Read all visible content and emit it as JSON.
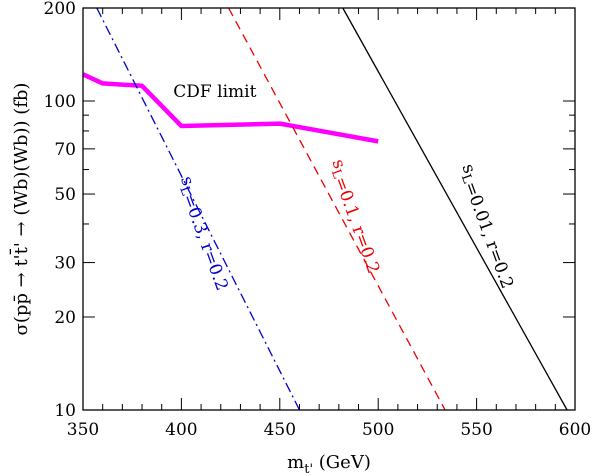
{
  "chart_data": {
    "type": "line",
    "xlabel": "m_t' (GeV)",
    "ylabel": "σ(pp̄ → t't̄' → (Wb)(Wb)) (fb)",
    "xlim": [
      350,
      600
    ],
    "ylim": [
      10,
      200
    ],
    "y_scale": "log",
    "x_ticks": [
      350,
      400,
      450,
      500,
      550,
      600
    ],
    "y_ticks": [
      10,
      20,
      30,
      50,
      70,
      100,
      200
    ],
    "grid": false,
    "series": [
      {
        "name": "CDF limit",
        "color": "#ff00ff",
        "style": "solid-thick",
        "x": [
          350,
          360,
          380,
          400,
          450,
          500
        ],
        "y": [
          122,
          114,
          112,
          83,
          84.5,
          74
        ]
      },
      {
        "name": "s_L=0.3, r=0.2",
        "color": "#0000cc",
        "style": "dashdot",
        "x": [
          357,
          460
        ],
        "y": [
          200,
          10
        ]
      },
      {
        "name": "s_L=0.1, r=0.2",
        "color": "#ee0000",
        "style": "dashed",
        "x": [
          424,
          534
        ],
        "y": [
          200,
          10
        ]
      },
      {
        "name": "s_L=0.01, r=0.2",
        "color": "#000000",
        "style": "solid",
        "x": [
          482,
          596
        ],
        "y": [
          200,
          10
        ]
      }
    ],
    "annotations": [
      {
        "text": "CDF limit",
        "x": 417,
        "y": 103,
        "color": "#000000",
        "rotate": 0
      },
      {
        "text": "s_L=0.3, r=0.2",
        "x": 410,
        "y": 37,
        "color": "#0000cc",
        "rotate": 70
      },
      {
        "text": "s_L=0.1, r=0.2",
        "x": 487,
        "y": 42,
        "color": "#ee0000",
        "rotate": 70
      },
      {
        "text": "s_L=0.01, r=0.2",
        "x": 554,
        "y": 39,
        "color": "#000000",
        "rotate": 70
      }
    ]
  }
}
